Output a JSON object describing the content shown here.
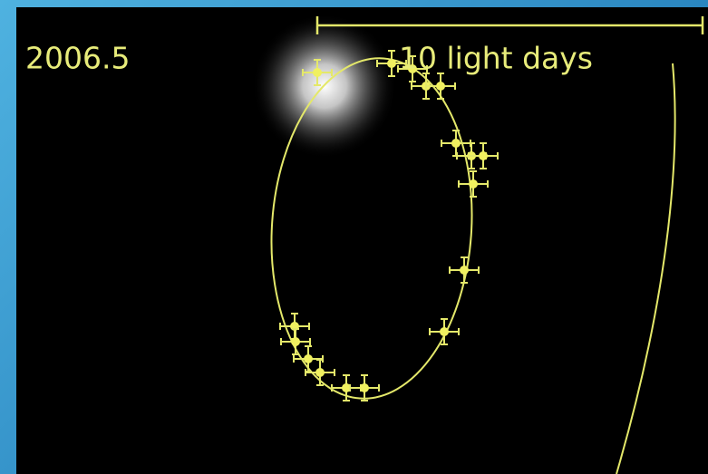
{
  "epoch_label": "2006.5",
  "scale_label": "10 light days"
}
